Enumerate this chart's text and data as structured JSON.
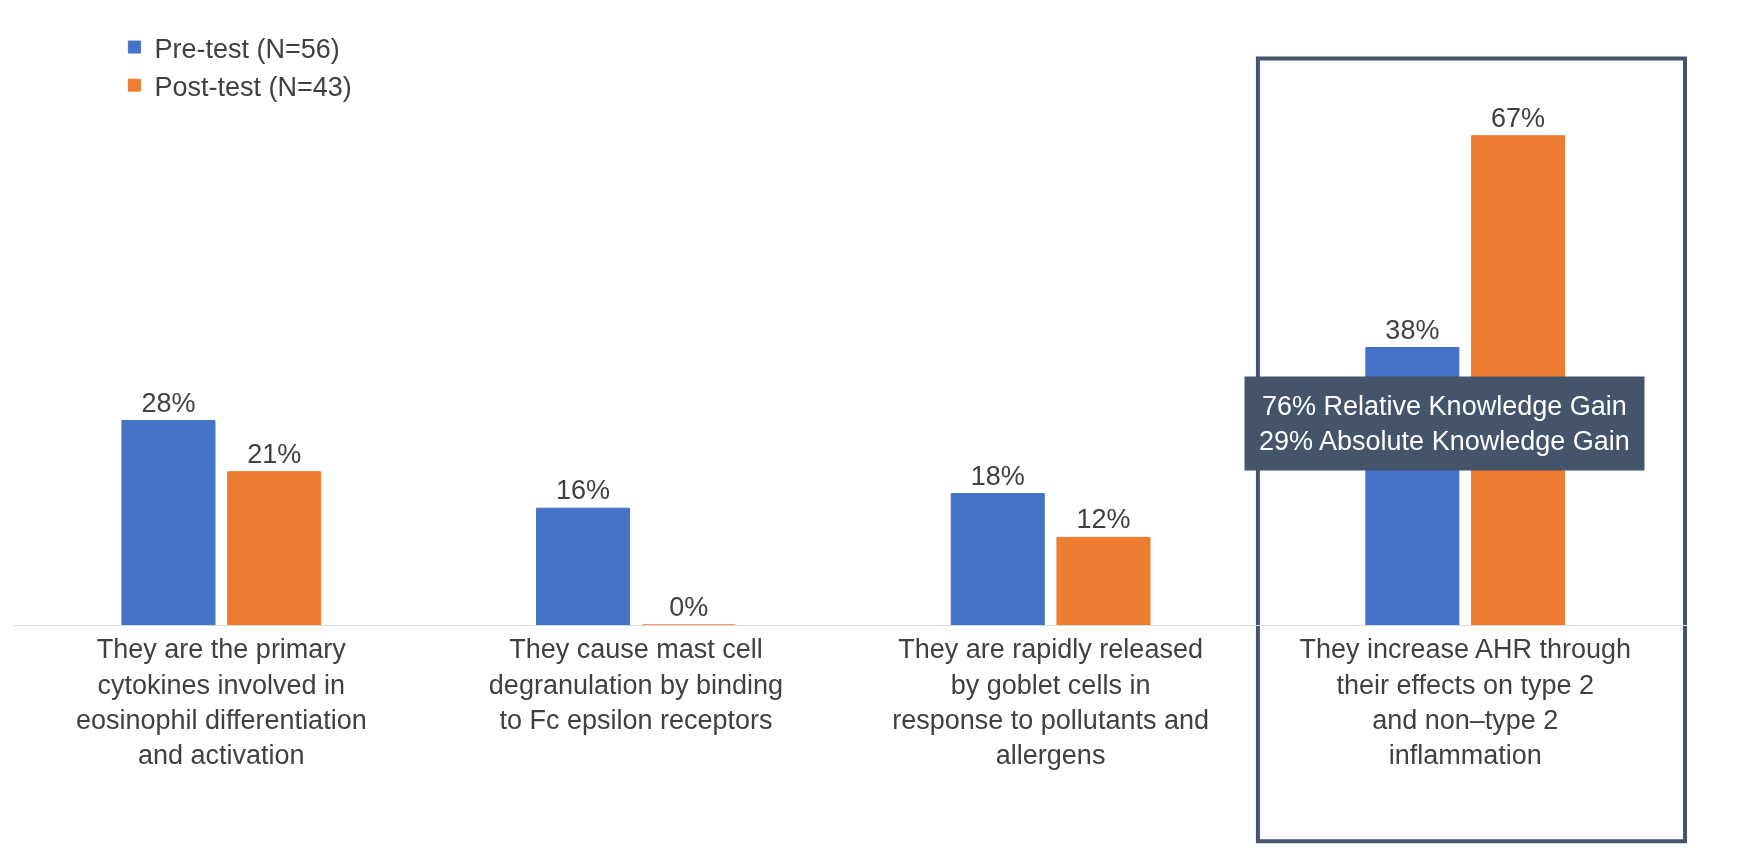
{
  "chart_data": {
    "type": "bar",
    "categories": [
      "They are the primary cytokines involved in eosinophil differentiation and activation",
      "They cause mast cell degranulation by binding to Fc epsilon receptors",
      "They are rapidly released by goblet cells in response to pollutants and allergens",
      "They increase AHR through their effects on type 2 and non–type 2 inflammation"
    ],
    "series": [
      {
        "name": "Pre-test (N=56)",
        "color": "#4472c4",
        "values": [
          28,
          16,
          18,
          38
        ],
        "value_labels": [
          "28%",
          "16%",
          "18%",
          "38%"
        ]
      },
      {
        "name": "Post-test (N=43)",
        "color": "#ed7d31",
        "values": [
          21,
          0,
          12,
          67
        ],
        "value_labels": [
          "21%",
          "0%",
          "12%",
          "67%"
        ]
      }
    ],
    "legend": "top left",
    "annotations": [
      "76% Relative Knowledge Gain\n29% Absolute Knowledge Gain"
    ]
  }
}
